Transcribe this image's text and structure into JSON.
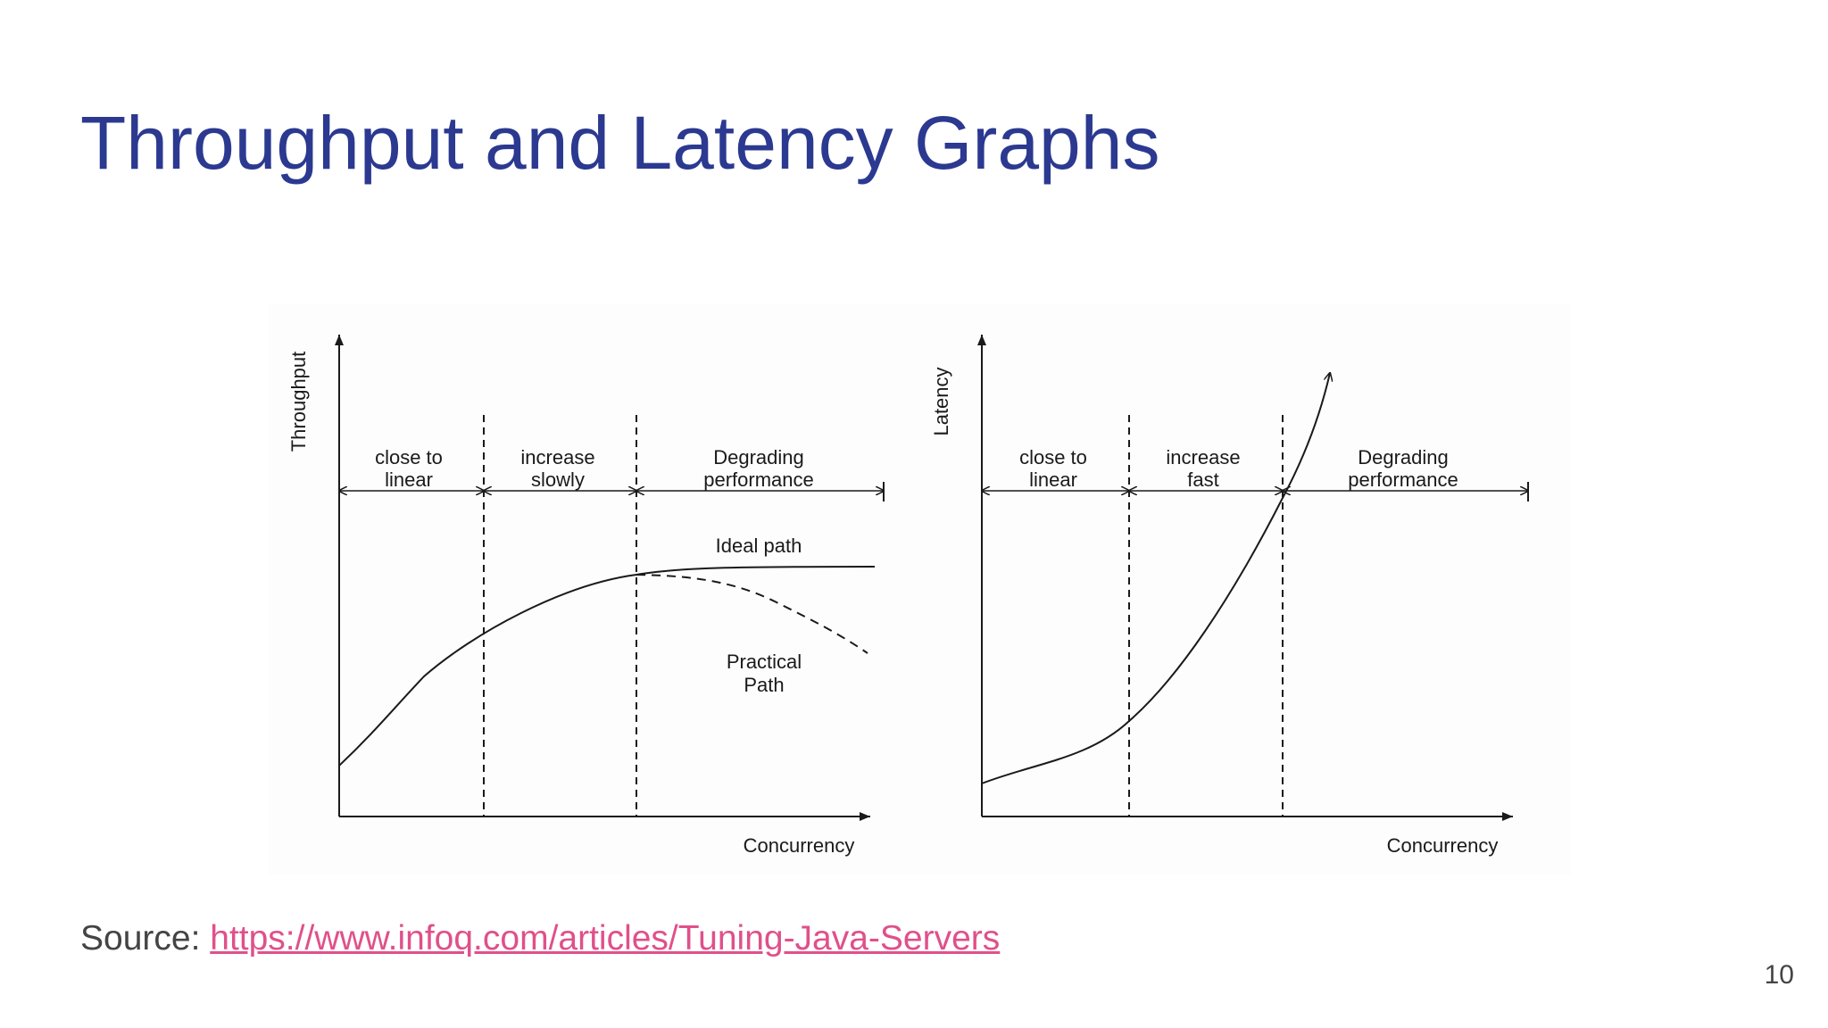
{
  "slide": {
    "title": "Throughput and Latency Graphs",
    "source_prefix": "Source: ",
    "source_link": "https://www.infoq.com/articles/Tuning-Java-Servers",
    "page_number": "10"
  },
  "diagrams": {
    "throughput": {
      "y_axis_label": "Throughput",
      "x_axis_label": "Concurrency",
      "region_1": [
        "close to",
        "linear"
      ],
      "region_2": [
        "increase",
        "slowly"
      ],
      "region_3": [
        "Degrading",
        "performance"
      ],
      "ideal_label": "Ideal path",
      "practical_label": [
        "Practical",
        "Path"
      ]
    },
    "latency": {
      "y_axis_label": "Latency",
      "x_axis_label": "Concurrency",
      "region_1": [
        "close to",
        "linear"
      ],
      "region_2": [
        "increase",
        "fast"
      ],
      "region_3": [
        "Degrading",
        "performance"
      ]
    }
  },
  "colors": {
    "title": "#2b3990",
    "link": "#e0508a",
    "text": "#444444"
  }
}
